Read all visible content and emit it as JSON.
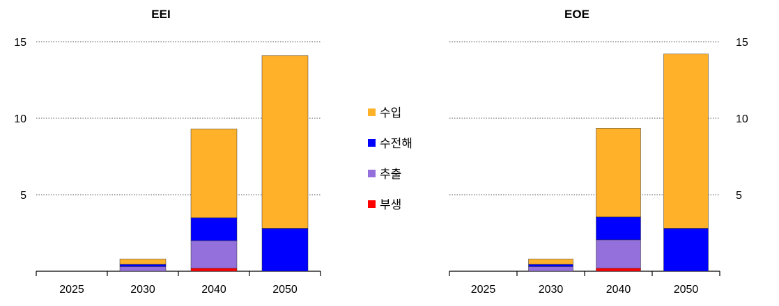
{
  "chart_data": [
    {
      "type": "bar",
      "stacked": true,
      "title": "EEI",
      "categories": [
        "2025",
        "2030",
        "2040",
        "2050"
      ],
      "ylim": [
        0,
        15
      ],
      "yticks": [
        5,
        10,
        15
      ],
      "grid": "dotted horizontal",
      "y_axis_side": "left",
      "series": [
        {
          "name": "부생",
          "color": "#ff0000",
          "values": [
            0,
            0,
            0.2,
            0
          ]
        },
        {
          "name": "추출",
          "color": "#9370db",
          "values": [
            0,
            0.3,
            1.8,
            0
          ]
        },
        {
          "name": "수전해",
          "color": "#0000ff",
          "values": [
            0,
            0.15,
            1.5,
            2.8
          ]
        },
        {
          "name": "수입",
          "color": "#ffb12a",
          "values": [
            0,
            0.35,
            5.8,
            11.3
          ]
        }
      ]
    },
    {
      "type": "bar",
      "stacked": true,
      "title": "EOE",
      "categories": [
        "2025",
        "2030",
        "2040",
        "2050"
      ],
      "ylim": [
        0,
        15
      ],
      "yticks": [
        5,
        10,
        15
      ],
      "grid": "dotted horizontal",
      "y_axis_side": "right",
      "series": [
        {
          "name": "부생",
          "color": "#ff0000",
          "values": [
            0,
            0,
            0.2,
            0
          ]
        },
        {
          "name": "추출",
          "color": "#9370db",
          "values": [
            0,
            0.3,
            1.85,
            0
          ]
        },
        {
          "name": "수전해",
          "color": "#0000ff",
          "values": [
            0,
            0.15,
            1.5,
            2.8
          ]
        },
        {
          "name": "수입",
          "color": "#ffb12a",
          "values": [
            0,
            0.35,
            5.8,
            11.4
          ]
        }
      ]
    }
  ],
  "legend": {
    "placement": "center",
    "items": [
      {
        "name": "수입",
        "color": "#ffb12a"
      },
      {
        "name": "수전해",
        "color": "#0000ff"
      },
      {
        "name": "추출",
        "color": "#9370db"
      },
      {
        "name": "부생",
        "color": "#ff0000"
      }
    ]
  }
}
